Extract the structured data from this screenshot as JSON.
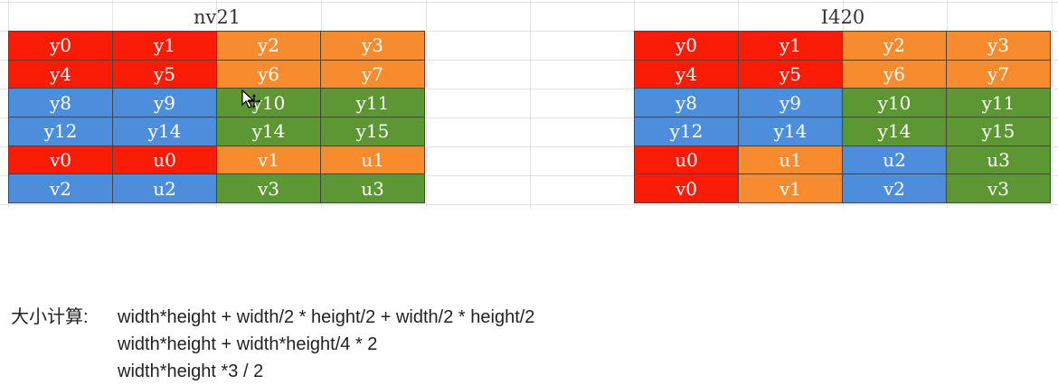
{
  "tables": {
    "nv21": {
      "title": "nv21",
      "rows": [
        [
          {
            "text": "y0",
            "color": "#fb1c08"
          },
          {
            "text": "y1",
            "color": "#fb1c08"
          },
          {
            "text": "y2",
            "color": "#f88b2e"
          },
          {
            "text": "y3",
            "color": "#f88b2e"
          }
        ],
        [
          {
            "text": "y4",
            "color": "#fb1c08"
          },
          {
            "text": "y5",
            "color": "#fb1c08"
          },
          {
            "text": "y6",
            "color": "#f88b2e"
          },
          {
            "text": "y7",
            "color": "#f88b2e"
          }
        ],
        [
          {
            "text": "y8",
            "color": "#4c8edb"
          },
          {
            "text": "y9",
            "color": "#4c8edb"
          },
          {
            "text": "y10",
            "color": "#5d9733"
          },
          {
            "text": "y11",
            "color": "#5d9733"
          }
        ],
        [
          {
            "text": "y12",
            "color": "#4c8edb"
          },
          {
            "text": "y14",
            "color": "#4c8edb"
          },
          {
            "text": "y14",
            "color": "#5d9733"
          },
          {
            "text": "y15",
            "color": "#5d9733"
          }
        ],
        [
          {
            "text": "v0",
            "color": "#fb1c08"
          },
          {
            "text": "u0",
            "color": "#fb1c08"
          },
          {
            "text": "v1",
            "color": "#f88b2e"
          },
          {
            "text": "u1",
            "color": "#f88b2e"
          }
        ],
        [
          {
            "text": "v2",
            "color": "#4c8edb"
          },
          {
            "text": "u2",
            "color": "#4c8edb"
          },
          {
            "text": "v3",
            "color": "#5d9733"
          },
          {
            "text": "u3",
            "color": "#5d9733"
          }
        ]
      ]
    },
    "i420": {
      "title": "I420",
      "rows": [
        [
          {
            "text": "y0",
            "color": "#fb1c08"
          },
          {
            "text": "y1",
            "color": "#fb1c08"
          },
          {
            "text": "y2",
            "color": "#f88b2e"
          },
          {
            "text": "y3",
            "color": "#f88b2e"
          }
        ],
        [
          {
            "text": "y4",
            "color": "#fb1c08"
          },
          {
            "text": "y5",
            "color": "#fb1c08"
          },
          {
            "text": "y6",
            "color": "#f88b2e"
          },
          {
            "text": "y7",
            "color": "#f88b2e"
          }
        ],
        [
          {
            "text": "y8",
            "color": "#4c8edb"
          },
          {
            "text": "y9",
            "color": "#4c8edb"
          },
          {
            "text": "y10",
            "color": "#5d9733"
          },
          {
            "text": "y11",
            "color": "#5d9733"
          }
        ],
        [
          {
            "text": "y12",
            "color": "#4c8edb"
          },
          {
            "text": "y14",
            "color": "#4c8edb"
          },
          {
            "text": "y14",
            "color": "#5d9733"
          },
          {
            "text": "y15",
            "color": "#5d9733"
          }
        ],
        [
          {
            "text": "u0",
            "color": "#fb1c08"
          },
          {
            "text": "u1",
            "color": "#f88b2e"
          },
          {
            "text": "u2",
            "color": "#4c8edb"
          },
          {
            "text": "u3",
            "color": "#5d9733"
          }
        ],
        [
          {
            "text": "v0",
            "color": "#fb1c08"
          },
          {
            "text": "v1",
            "color": "#f88b2e"
          },
          {
            "text": "v2",
            "color": "#4c8edb"
          },
          {
            "text": "v3",
            "color": "#5d9733"
          }
        ]
      ]
    }
  },
  "formula": {
    "label": "大小计算:",
    "lines": [
      "width*height + width/2 * height/2 + width/2 * height/2",
      "width*height + width*height/4 * 2",
      "width*height *3 / 2"
    ]
  },
  "cursor": {
    "icon": "move-cursor-icon"
  }
}
